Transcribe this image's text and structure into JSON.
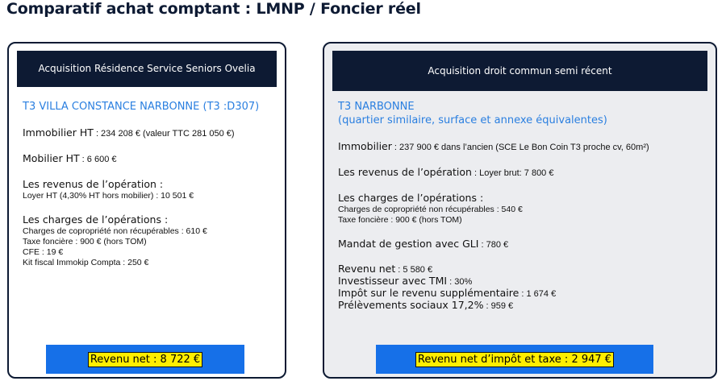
{
  "title": "Comparatif achat comptant : LMNP / Foncier réel",
  "left": {
    "header": "Acquisition Résidence Service Seniors Ovelia",
    "subtitle": "T3 VILLA CONSTANCE NARBONNE (T3 :D307)",
    "immobilier_label": "Immobilier HT",
    "immobilier_value": " : 234 208 € (valeur TTC 281 050 €)",
    "mobilier_label": "Mobilier HT",
    "mobilier_value": " : 6 600 €",
    "revenus_label": "Les revenus de l’opération :",
    "revenus_line": "Loyer HT (4,30% HT hors mobilier) :  10 501 €",
    "charges_label": "Les charges de l’opérations :",
    "charges_lines": [
      "Charges de copropriété non récupérables : 610 €",
      "Taxe foncière : 900 € (hors TOM)",
      "CFE : 19 €",
      "Kit fiscal Immokip Compta : 250 €"
    ],
    "total": "Revenu net : 8 722 €"
  },
  "right": {
    "header": "Acquisition droit commun semi récent",
    "subtitle_1": "T3 NARBONNE",
    "subtitle_2": "(quartier similaire, surface et annexe équivalentes)",
    "immobilier_label": "Immobilier",
    "immobilier_value": " : 237 900 € dans l’ancien (SCE Le Bon Coin T3 proche cv, 60m²)",
    "revenus_label": "Les revenus de l’opération",
    "revenus_value": " : Loyer brut:  7 800 €",
    "charges_label": "Les charges de l’opérations :",
    "charges_lines": [
      "Charges de copropriété non récupérables : 540 €",
      "Taxe foncière : 900 € (hors TOM)"
    ],
    "mandat_label": "Mandat de gestion avec GLI",
    "mandat_value": " : 780 €",
    "revenu_net_label": "Revenu net",
    "revenu_net_value": " : 5 580 €",
    "tmi_label": "Investisseur avec TMI",
    "tmi_value": " : 30%",
    "impot_label": "Impôt sur le revenu supplémentaire",
    "impot_value": " : 1 674 €",
    "prelev_label": "Prélèvements sociaux 17,2%",
    "prelev_value": " : 959 €",
    "total": "Revenu net d’impôt et taxe : 2 947 €"
  }
}
